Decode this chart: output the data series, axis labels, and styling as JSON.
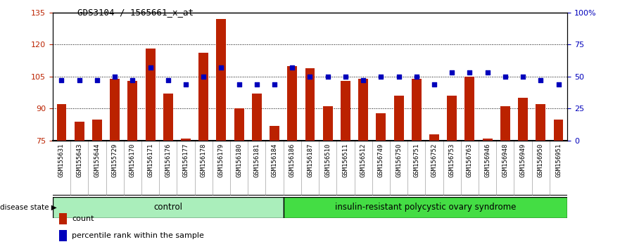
{
  "title": "GDS3104 / 1565661_x_at",
  "samples": [
    "GSM155631",
    "GSM155643",
    "GSM155644",
    "GSM155729",
    "GSM156170",
    "GSM156171",
    "GSM156176",
    "GSM156177",
    "GSM156178",
    "GSM156179",
    "GSM156180",
    "GSM156181",
    "GSM156184",
    "GSM156186",
    "GSM156187",
    "GSM156510",
    "GSM156511",
    "GSM156512",
    "GSM156749",
    "GSM156750",
    "GSM156751",
    "GSM156752",
    "GSM156753",
    "GSM156763",
    "GSM156946",
    "GSM156948",
    "GSM156949",
    "GSM156950",
    "GSM156951"
  ],
  "bar_values": [
    92,
    84,
    85,
    104,
    103,
    118,
    97,
    76,
    116,
    132,
    90,
    97,
    82,
    110,
    109,
    91,
    103,
    104,
    88,
    96,
    104,
    78,
    96,
    105,
    76,
    91,
    95,
    92,
    85
  ],
  "percentile_values": [
    47,
    47,
    47,
    50,
    47,
    57,
    47,
    44,
    50,
    57,
    44,
    44,
    44,
    57,
    50,
    50,
    50,
    47,
    50,
    50,
    50,
    44,
    53,
    53,
    53,
    50,
    50,
    47,
    44
  ],
  "n_control": 13,
  "ylim_left": [
    75,
    135
  ],
  "ylim_right": [
    0,
    100
  ],
  "yticks_left": [
    75,
    90,
    105,
    120,
    135
  ],
  "yticks_right": [
    0,
    25,
    50,
    75,
    100
  ],
  "yticklabels_right": [
    "0",
    "25",
    "50",
    "75",
    "100%"
  ],
  "bar_color": "#bb2200",
  "dot_color": "#0000bb",
  "control_label": "control",
  "disease_label": "insulin-resistant polycystic ovary syndrome",
  "disease_state_label": "disease state",
  "legend_bar": "count",
  "legend_dot": "percentile rank within the sample",
  "control_bg": "#aaeebb",
  "disease_bg": "#44dd44",
  "plot_bg": "#ffffff"
}
